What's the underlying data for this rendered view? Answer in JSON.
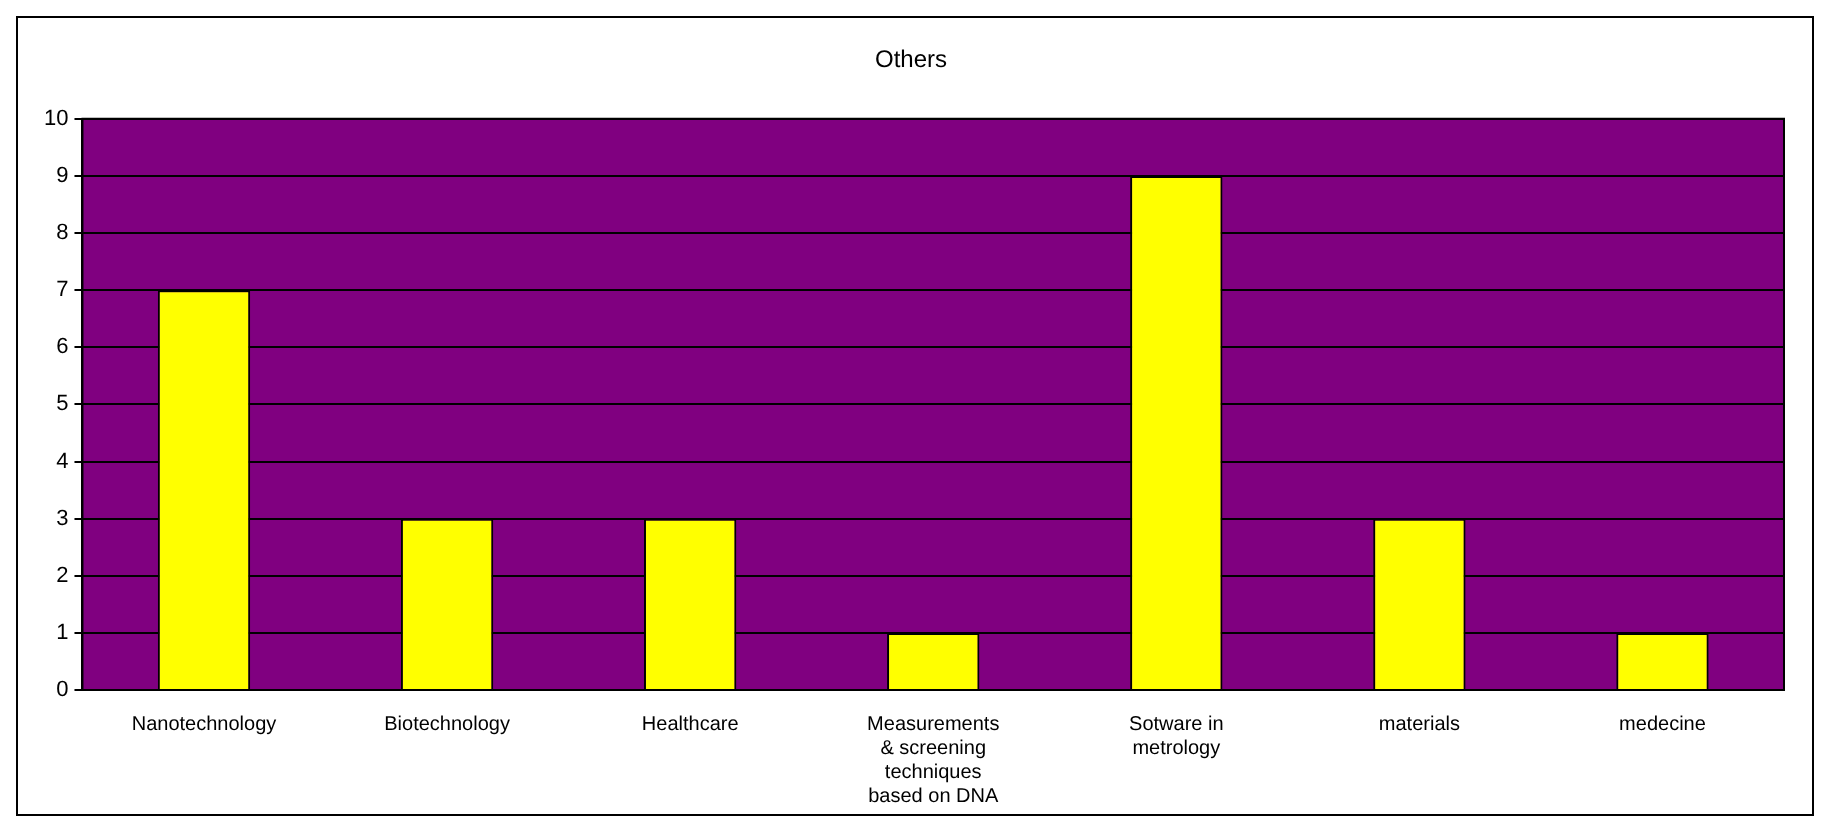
{
  "chart_data": {
    "type": "bar",
    "title": "Others",
    "categories": [
      "Nanotechnology",
      "Biotechnology",
      "Healthcare",
      "Measurements & screening techniques based on DNA",
      "Sotware in metrology",
      "materials",
      "medecine"
    ],
    "values": [
      7,
      3,
      3,
      1,
      9,
      3,
      1
    ],
    "color": "#ffff00",
    "ylim": [
      0,
      10
    ],
    "yticks": [
      0,
      1,
      2,
      3,
      4,
      5,
      6,
      7,
      8,
      9,
      10
    ],
    "grid": "y",
    "legend": false
  }
}
